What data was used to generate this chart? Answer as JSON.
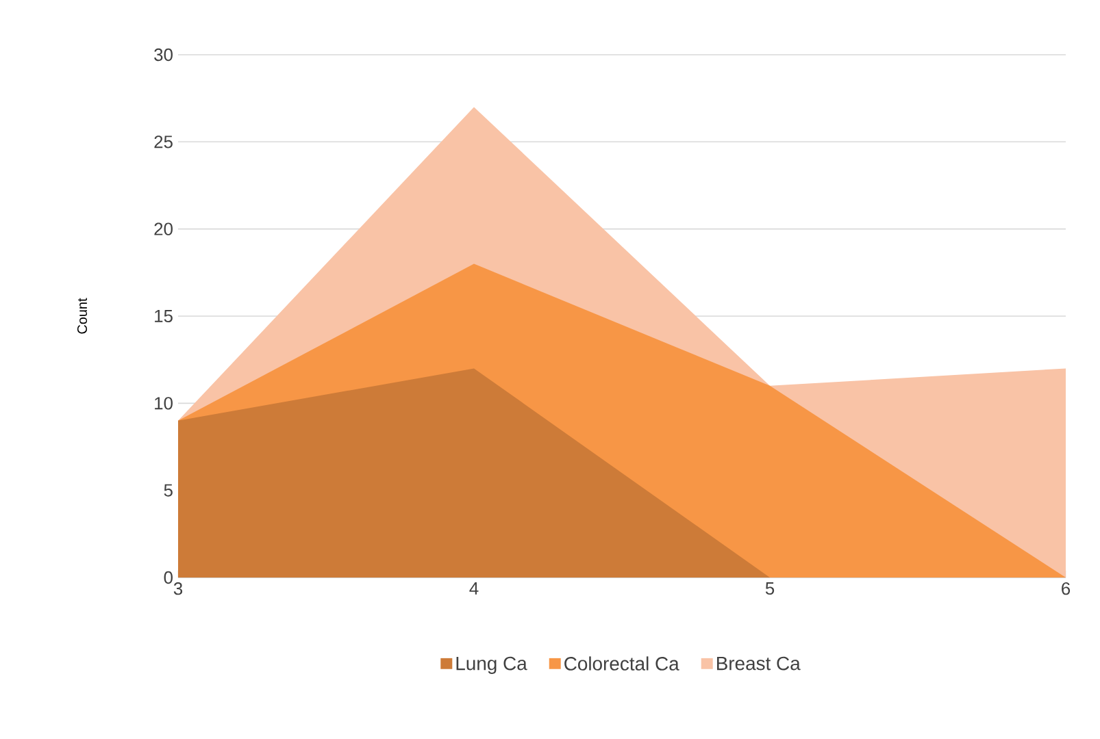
{
  "chart_data": {
    "type": "area",
    "ylabel": "Count",
    "x": [
      3,
      4,
      5,
      6
    ],
    "series": [
      {
        "name": "Lung Ca",
        "color": "#cd7b38",
        "values": [
          9,
          12,
          0,
          0
        ]
      },
      {
        "name": "Colorectal Ca",
        "color": "#f79646",
        "values": [
          9,
          18,
          11,
          0
        ]
      },
      {
        "name": "Breast Ca",
        "color": "#f9c3a6",
        "values": [
          9,
          27,
          11,
          12
        ]
      }
    ],
    "xlim": [
      3,
      6
    ],
    "xticks": [
      3,
      4,
      5,
      6
    ],
    "ylim": [
      0,
      30
    ],
    "yticks": [
      0,
      5,
      10,
      15,
      20,
      25,
      30
    ],
    "grid": "y",
    "legend": "bottom"
  }
}
